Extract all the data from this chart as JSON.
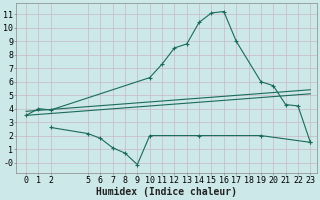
{
  "bg_color": "#cce8e8",
  "grid_color": "#b0d4d4",
  "line_color": "#1a6b5a",
  "xlabel": "Humidex (Indice chaleur)",
  "xlabel_fontsize": 7,
  "tick_fontsize": 6,
  "ylim": [
    -0.8,
    11.8
  ],
  "xlim": [
    -0.8,
    23.5
  ],
  "yticks": [
    0,
    1,
    2,
    3,
    4,
    5,
    6,
    7,
    8,
    9,
    10,
    11
  ],
  "ytick_labels": [
    "-0",
    "1",
    "2",
    "3",
    "4",
    "5",
    "6",
    "7",
    "8",
    "9",
    "10",
    "11"
  ],
  "xticks": [
    0,
    1,
    2,
    5,
    6,
    7,
    8,
    9,
    10,
    11,
    12,
    13,
    14,
    15,
    16,
    17,
    18,
    19,
    20,
    21,
    22,
    23
  ],
  "curve1_x": [
    0,
    1,
    2,
    10,
    11,
    12,
    13,
    14,
    15,
    16,
    17,
    19,
    20,
    21,
    22,
    23
  ],
  "curve1_y": [
    3.5,
    4.0,
    3.9,
    6.3,
    7.3,
    8.5,
    8.8,
    10.4,
    11.1,
    11.2,
    9.0,
    6.0,
    5.7,
    4.3,
    4.2,
    1.5
  ],
  "curve2_x": [
    0,
    23
  ],
  "curve2_y": [
    3.8,
    5.4
  ],
  "curve3_x": [
    0,
    23
  ],
  "curve3_y": [
    3.5,
    5.1
  ],
  "curve4_x": [
    2,
    5,
    6,
    7,
    8,
    9,
    10,
    14,
    19,
    23
  ],
  "curve4_y": [
    2.6,
    2.15,
    1.8,
    1.1,
    0.7,
    -0.15,
    2.0,
    2.0,
    2.0,
    1.5
  ],
  "figsize": [
    3.2,
    2.0
  ],
  "dpi": 100
}
